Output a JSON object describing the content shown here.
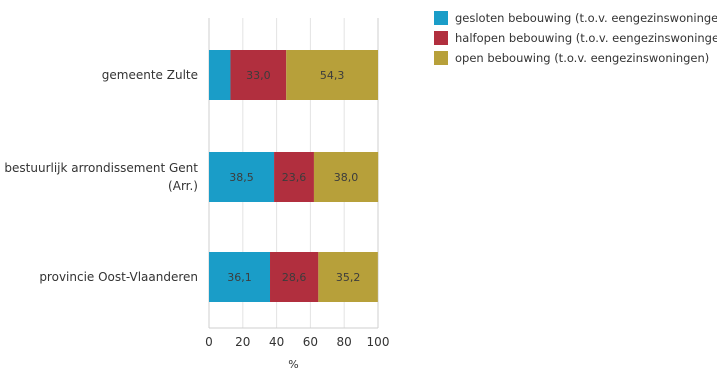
{
  "chart_data": {
    "type": "bar",
    "orientation": "horizontal",
    "stacked": true,
    "categories": [
      "gemeente Zulte",
      "bestuurlijk arrondissement Gent (Arr.)",
      "provincie Oost-Vlaanderen"
    ],
    "category_label_lines": [
      [
        "gemeente Zulte"
      ],
      [
        "bestuurlijk arrondissement Gent",
        "(Arr.)"
      ],
      [
        "provincie Oost-Vlaanderen"
      ]
    ],
    "series": [
      {
        "name": "gesloten bebouwing (t.o.v. eengezinswoningen)",
        "color": "#1a9dc8",
        "values": [
          12.7,
          38.5,
          36.1
        ],
        "labels": [
          "",
          "38,5",
          "36,1"
        ]
      },
      {
        "name": "halfopen bebouwing (t.o.v. eengezinswoningen)",
        "color": "#b12f3e",
        "values": [
          33.0,
          23.6,
          28.6
        ],
        "labels": [
          "33,0",
          "23,6",
          "28,6"
        ]
      },
      {
        "name": "open bebouwing (t.o.v. eengezinswoningen)",
        "color": "#b7a03a",
        "values": [
          54.3,
          38.0,
          35.2
        ],
        "labels": [
          "54,3",
          "38,0",
          "35,2"
        ]
      }
    ],
    "xlabel": "%",
    "xlim": [
      0,
      100
    ],
    "xticks": [
      0,
      20,
      40,
      60,
      80,
      100
    ],
    "grid": true,
    "legend_position": "top-right"
  }
}
